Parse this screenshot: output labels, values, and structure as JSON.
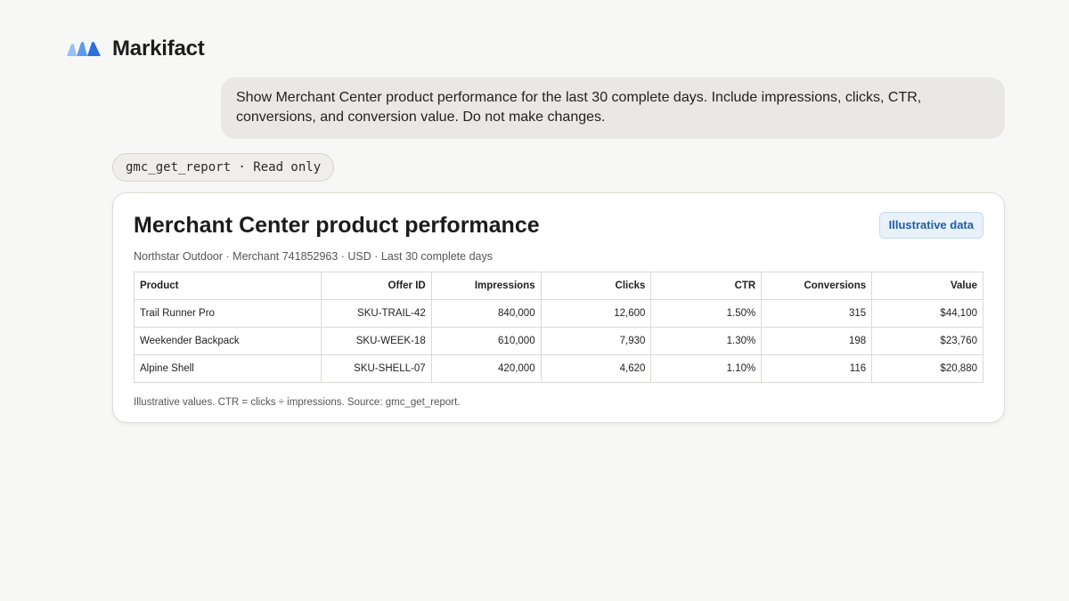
{
  "brand": {
    "name": "Markifact",
    "logo_icon": "markifact-logo-icon",
    "logo_colors": [
      "#93c0f5",
      "#5a9bec",
      "#2a6fdc"
    ]
  },
  "user_message": {
    "text": "Show Merchant Center product performance for the last 30 complete days. Include impressions, clicks, CTR, conversions, and conversion value. Do not make changes."
  },
  "tool_call": {
    "label": "gmc_get_report · Read only"
  },
  "report": {
    "title": "Merchant Center product performance",
    "badge": "Illustrative data",
    "subtitle": "Northstar Outdoor · Merchant 741852963 · USD · Last 30 complete days",
    "columns": [
      "Product",
      "Offer ID",
      "Impressions",
      "Clicks",
      "CTR",
      "Conversions",
      "Value"
    ],
    "rows": [
      [
        "Trail Runner Pro",
        "SKU-TRAIL-42",
        "840,000",
        "12,600",
        "1.50%",
        "315",
        "$44,100"
      ],
      [
        "Weekender Backpack",
        "SKU-WEEK-18",
        "610,000",
        "7,930",
        "1.30%",
        "198",
        "$23,760"
      ],
      [
        "Alpine Shell",
        "SKU-SHELL-07",
        "420,000",
        "4,620",
        "1.10%",
        "116",
        "$20,880"
      ]
    ],
    "note": "Illustrative values. CTR = clicks ÷ impressions. Source: gmc_get_report."
  }
}
